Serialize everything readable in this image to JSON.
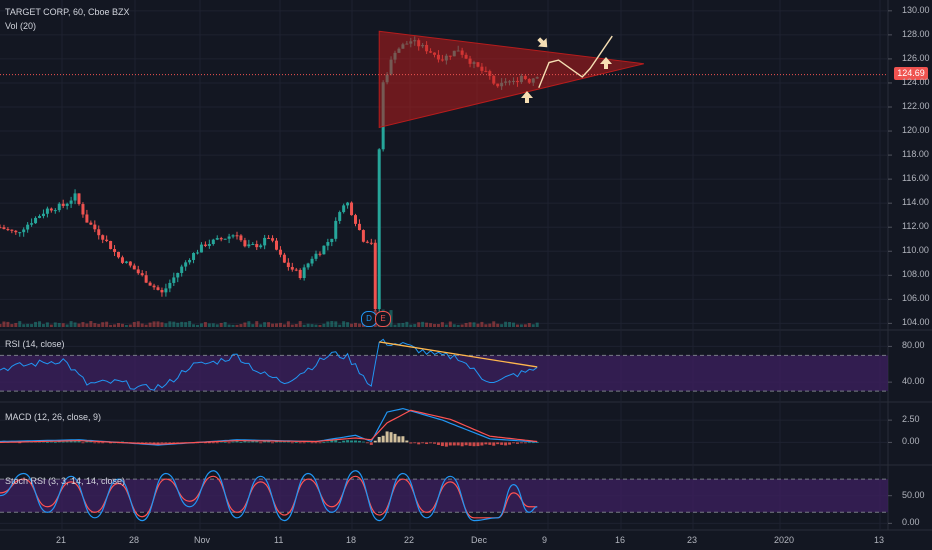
{
  "header": {
    "symbol": "TARGET CORP, 60, Cboe BZX",
    "volume_label": "Vol (20)"
  },
  "price_tag": "124.69",
  "event_badges": [
    "D",
    "E"
  ],
  "colors": {
    "background": "#131722",
    "up": "#26a69a",
    "down": "#ef5350",
    "grid": "#1e2230",
    "price_line": "#ef5350",
    "triangle": "#b71c1c",
    "annotation": "#f5deb3",
    "rsi_line": "#2196f3",
    "rsi_band": "#3b1f5c",
    "macd_line": "#2196f3",
    "signal_line": "#ff5252",
    "stoch_k": "#2196f3",
    "stoch_d": "#ff5252",
    "rsi_trendline": "#ffb74d"
  },
  "chart_data": [
    {
      "type": "candlestick",
      "title": "TARGET CORP, 60, Cboe BZX",
      "x_tick_labels": [
        "21",
        "28",
        "Nov",
        "11",
        "18",
        "22",
        "Dec",
        "9",
        "16",
        "23",
        "2020",
        "13"
      ],
      "y_tick_labels": [
        "104.00",
        "106.00",
        "108.00",
        "110.00",
        "112.00",
        "114.00",
        "116.00",
        "118.00",
        "120.00",
        "122.00",
        "124.00",
        "126.00",
        "128.00",
        "130.00"
      ],
      "ylim": [
        103.7,
        130.9
      ],
      "last_price": 124.69,
      "path_points": [
        [
          0,
          112.0
        ],
        [
          2,
          111.5
        ],
        [
          4,
          112.5
        ],
        [
          6,
          113.5
        ],
        [
          8,
          113.8
        ],
        [
          9.5,
          114.6
        ],
        [
          11,
          112.5
        ],
        [
          13,
          111.2
        ],
        [
          15,
          109.5
        ],
        [
          17,
          108.5
        ],
        [
          19,
          107.3
        ],
        [
          20.5,
          106.5
        ],
        [
          22,
          107.8
        ],
        [
          24,
          109.5
        ],
        [
          26,
          110.6
        ],
        [
          28,
          111.0
        ],
        [
          30,
          111.5
        ],
        [
          31,
          110.3
        ],
        [
          33,
          110.6
        ],
        [
          34,
          111.2
        ],
        [
          36,
          109.0
        ],
        [
          38,
          108.0
        ],
        [
          39.5,
          109.5
        ],
        [
          40.5,
          110.0
        ],
        [
          42,
          111.2
        ],
        [
          43,
          113.5
        ],
        [
          44,
          114.0
        ],
        [
          45,
          112.5
        ],
        [
          46,
          111.0
        ],
        [
          47,
          110.8
        ],
        [
          47.5,
          105.0
        ],
        [
          48,
          118.5
        ],
        [
          48.5,
          124.0
        ],
        [
          50,
          126.7
        ],
        [
          52,
          127.5
        ],
        [
          54,
          126.8
        ],
        [
          56,
          126.0
        ],
        [
          58,
          126.8
        ],
        [
          60,
          125.5
        ],
        [
          62,
          124.5
        ],
        [
          63,
          123.5
        ],
        [
          64,
          124.2
        ],
        [
          65,
          124.0
        ],
        [
          66,
          124.6
        ],
        [
          67,
          124.2
        ],
        [
          68,
          124.7
        ]
      ],
      "volume_base": 104.0
    },
    {
      "type": "line",
      "title": "RSI (14, close)",
      "y_tick_labels": [
        "80.00",
        "40.00"
      ],
      "ylim": [
        20,
        95
      ],
      "band": [
        30,
        70
      ],
      "path_points": [
        [
          0,
          55
        ],
        [
          4,
          60
        ],
        [
          8,
          65
        ],
        [
          11,
          38
        ],
        [
          15,
          40
        ],
        [
          18,
          33
        ],
        [
          21,
          36
        ],
        [
          24,
          58
        ],
        [
          27,
          62
        ],
        [
          30,
          70
        ],
        [
          33,
          50
        ],
        [
          36,
          40
        ],
        [
          39,
          55
        ],
        [
          42,
          72
        ],
        [
          44,
          68
        ],
        [
          46,
          48
        ],
        [
          47,
          35
        ],
        [
          48,
          85
        ],
        [
          51,
          82
        ],
        [
          55,
          70
        ],
        [
          58,
          68
        ],
        [
          61,
          45
        ],
        [
          63,
          40
        ],
        [
          65,
          48
        ],
        [
          67,
          52
        ],
        [
          68,
          56
        ]
      ]
    },
    {
      "type": "line",
      "title": "MACD (12, 26, close, 9)",
      "y_tick_labels": [
        "2.50",
        "0.00"
      ],
      "ylim": [
        -2.2,
        4.2
      ],
      "series": [
        {
          "path_points": [
            [
              0,
              0.1
            ],
            [
              10,
              0.3
            ],
            [
              20,
              -0.3
            ],
            [
              30,
              0.3
            ],
            [
              40,
              0.1
            ],
            [
              45,
              0.8
            ],
            [
              47,
              0.1
            ],
            [
              49,
              3.4
            ],
            [
              51,
              3.8
            ],
            [
              56,
              2.5
            ],
            [
              62,
              0.4
            ],
            [
              68,
              0.05
            ]
          ]
        },
        {
          "path_points": [
            [
              0,
              0.0
            ],
            [
              10,
              0.2
            ],
            [
              20,
              -0.2
            ],
            [
              30,
              0.2
            ],
            [
              40,
              0.1
            ],
            [
              45,
              0.5
            ],
            [
              47,
              0.3
            ],
            [
              49,
              2.2
            ],
            [
              52,
              3.6
            ],
            [
              57,
              2.6
            ],
            [
              62,
              0.7
            ],
            [
              68,
              0.1
            ]
          ]
        }
      ]
    },
    {
      "type": "line",
      "title": "Stoch RSI (3, 3, 14, 14, close)",
      "y_tick_labels": [
        "50.00",
        "0.00"
      ],
      "ylim": [
        -12,
        100
      ],
      "band": [
        20,
        80
      ],
      "series": [
        {
          "path_points": [
            [
              0,
              50
            ],
            [
              3,
              90
            ],
            [
              6,
              20
            ],
            [
              9,
              85
            ],
            [
              12,
              10
            ],
            [
              15,
              80
            ],
            [
              18,
              5
            ],
            [
              21,
              90
            ],
            [
              24,
              30
            ],
            [
              27,
              95
            ],
            [
              30,
              10
            ],
            [
              33,
              85
            ],
            [
              36,
              5
            ],
            [
              39,
              90
            ],
            [
              42,
              20
            ],
            [
              45,
              95
            ],
            [
              48,
              5
            ],
            [
              51,
              90
            ],
            [
              54,
              10
            ],
            [
              57,
              85
            ],
            [
              60,
              5
            ],
            [
              63,
              10
            ],
            [
              65,
              70
            ],
            [
              67,
              20
            ],
            [
              68,
              30
            ]
          ]
        },
        {
          "path_points": [
            [
              0,
              55
            ],
            [
              3,
              80
            ],
            [
              6,
              30
            ],
            [
              9,
              75
            ],
            [
              12,
              20
            ],
            [
              15,
              72
            ],
            [
              18,
              12
            ],
            [
              21,
              80
            ],
            [
              24,
              40
            ],
            [
              27,
              85
            ],
            [
              30,
              20
            ],
            [
              33,
              75
            ],
            [
              36,
              15
            ],
            [
              39,
              80
            ],
            [
              42,
              30
            ],
            [
              45,
              85
            ],
            [
              48,
              15
            ],
            [
              51,
              80
            ],
            [
              54,
              20
            ],
            [
              57,
              75
            ],
            [
              60,
              10
            ],
            [
              63,
              10
            ],
            [
              65,
              55
            ],
            [
              67,
              30
            ],
            [
              68,
              30
            ]
          ]
        }
      ]
    }
  ]
}
